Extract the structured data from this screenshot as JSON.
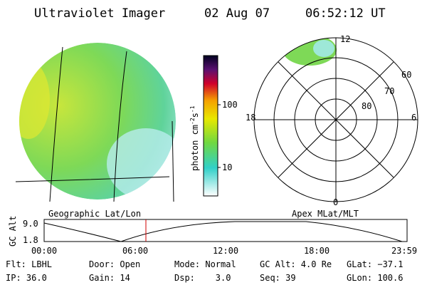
{
  "header": {
    "instrument": "Ultraviolet Imager",
    "date": "02 Aug 07",
    "time": "06:52:12 UT"
  },
  "colorbar": {
    "label": "photon cm",
    "exp1": "-2",
    "unit2": "s",
    "exp2": "-1",
    "ticks": [
      "100",
      "10"
    ]
  },
  "polar": {
    "labels": {
      "top": "12",
      "left": "18",
      "right": "6",
      "bottom": "0"
    },
    "rings": [
      "60",
      "70",
      "80"
    ]
  },
  "captions": {
    "left": "Geographic Lat/Lon",
    "right": "Apex MLat/MLT"
  },
  "altitude": {
    "label": "GC Alt",
    "ticks": [
      "9.0",
      "1.8"
    ],
    "times": [
      "00:00",
      "06:00",
      "12:00",
      "18:00",
      "23:59"
    ]
  },
  "footer": [
    [
      "Flt: LBHL",
      "IP: 36.0"
    ],
    [
      "Door: Open",
      "Gain: 14"
    ],
    [
      "Mode: Normal",
      "Dsp:    3.0"
    ],
    [
      "GC Alt: 4.0 Re",
      "Seq: 39"
    ],
    [
      "GLat: −37.1",
      "GLon: 100.6"
    ]
  ]
}
